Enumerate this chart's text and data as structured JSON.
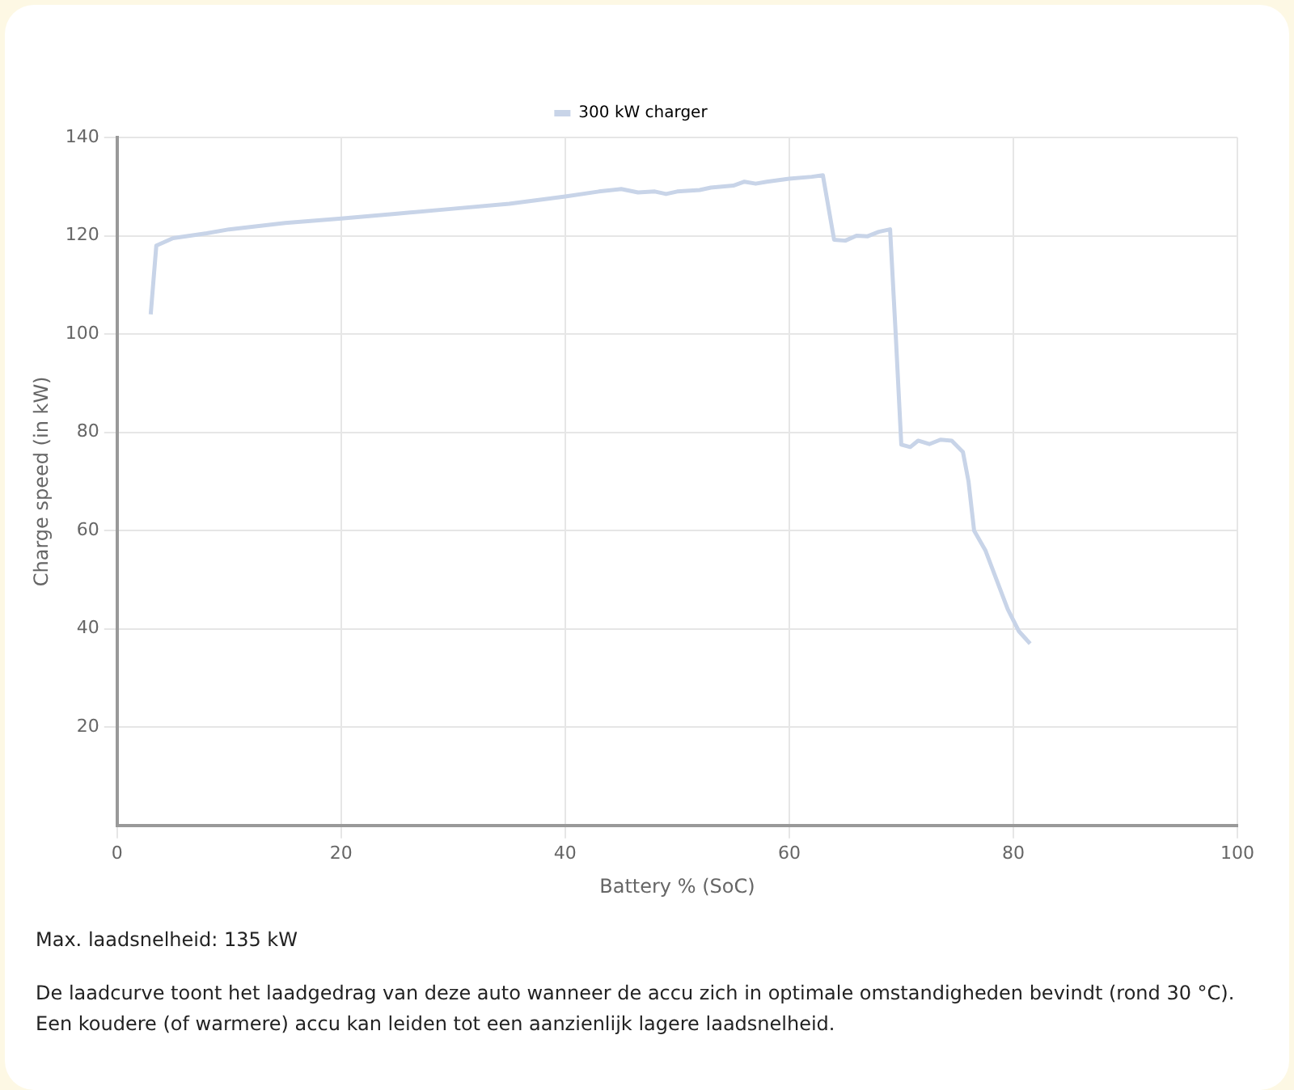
{
  "chart_data": {
    "type": "line",
    "xlabel": "Battery % (SoC)",
    "ylabel": "Charge speed (in kW)",
    "xlim": [
      0,
      100
    ],
    "xticks": [
      0,
      20,
      40,
      60,
      80,
      100
    ],
    "ylim": [
      0,
      140
    ],
    "yticks": [
      20,
      40,
      60,
      80,
      100,
      120,
      140
    ],
    "grid": true,
    "legend": "top",
    "marker": "none",
    "line_style": "solid",
    "series": [
      {
        "name": "300 kW charger",
        "color": "#c8d4e8",
        "x": [
          3,
          3.5,
          5,
          8,
          10,
          15,
          20,
          25,
          30,
          35,
          40,
          43,
          45,
          46.5,
          48,
          49,
          50,
          52,
          53,
          55,
          56,
          57,
          58,
          60,
          62,
          63,
          64,
          65,
          66,
          67,
          68,
          69,
          69.5,
          70,
          70.8,
          71.5,
          72.5,
          73.5,
          74.5,
          75.5,
          76,
          76.5,
          77.5,
          78.5,
          79.5,
          80.5,
          81.5
        ],
        "values": [
          104,
          118,
          119.5,
          120.5,
          121.3,
          122.6,
          123.5,
          124.5,
          125.5,
          126.5,
          128,
          129,
          129.5,
          128.8,
          129,
          128.5,
          129,
          129.3,
          129.8,
          130.2,
          131,
          130.6,
          131,
          131.6,
          132,
          132.3,
          119.2,
          119,
          120,
          119.9,
          120.8,
          121.3,
          100,
          77.5,
          77,
          78.3,
          77.6,
          78.5,
          78.3,
          76,
          70,
          60,
          56,
          50,
          44,
          39.5,
          37
        ]
      }
    ],
    "annotations": [
      "Max. laadsnelheid: 135 kW",
      "De laadcurve toont het laadgedrag van deze auto wanneer de accu zich in optimale omstandigheden bevindt (rond 30 °C). Een koudere (of warmere) accu kan leiden tot een aanzienlijk lagere laadsnelheid."
    ]
  }
}
